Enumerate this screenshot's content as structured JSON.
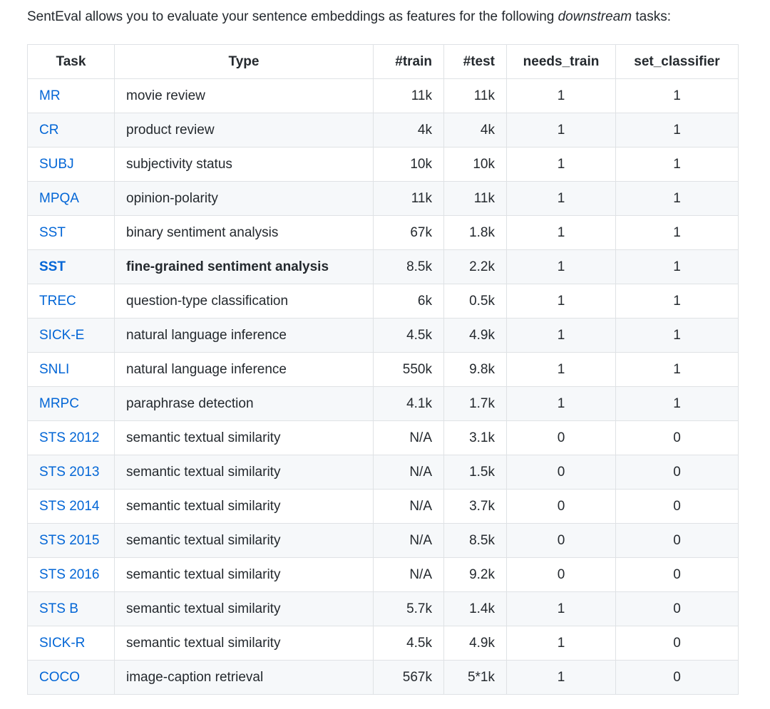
{
  "intro": {
    "prefix": "SentEval allows you to evaluate your sentence embeddings as features for the following ",
    "emphasis": "downstream",
    "suffix": " tasks:"
  },
  "colors": {
    "text": "#24292e",
    "link": "#0366d6",
    "border": "#dfe2e5",
    "stripe": "#f6f8fa",
    "background": "#ffffff"
  },
  "table": {
    "columns": [
      {
        "key": "task",
        "label": "Task",
        "align": "left",
        "header_align": "center"
      },
      {
        "key": "type",
        "label": "Type",
        "align": "left",
        "header_align": "center"
      },
      {
        "key": "train",
        "label": "#train",
        "align": "right",
        "header_align": "right"
      },
      {
        "key": "test",
        "label": "#test",
        "align": "right",
        "header_align": "right"
      },
      {
        "key": "needs_train",
        "label": "needs_train",
        "align": "center",
        "header_align": "center"
      },
      {
        "key": "set_classifier",
        "label": "set_classifier",
        "align": "center",
        "header_align": "center"
      }
    ],
    "rows": [
      {
        "task": "MR",
        "type": "movie review",
        "train": "11k",
        "test": "11k",
        "needs_train": "1",
        "set_classifier": "1",
        "bold": false
      },
      {
        "task": "CR",
        "type": "product review",
        "train": "4k",
        "test": "4k",
        "needs_train": "1",
        "set_classifier": "1",
        "bold": false
      },
      {
        "task": "SUBJ",
        "type": "subjectivity status",
        "train": "10k",
        "test": "10k",
        "needs_train": "1",
        "set_classifier": "1",
        "bold": false
      },
      {
        "task": "MPQA",
        "type": "opinion-polarity",
        "train": "11k",
        "test": "11k",
        "needs_train": "1",
        "set_classifier": "1",
        "bold": false
      },
      {
        "task": "SST",
        "type": "binary sentiment analysis",
        "train": "67k",
        "test": "1.8k",
        "needs_train": "1",
        "set_classifier": "1",
        "bold": false
      },
      {
        "task": "SST",
        "type": "fine-grained sentiment analysis",
        "train": "8.5k",
        "test": "2.2k",
        "needs_train": "1",
        "set_classifier": "1",
        "bold": true
      },
      {
        "task": "TREC",
        "type": "question-type classification",
        "train": "6k",
        "test": "0.5k",
        "needs_train": "1",
        "set_classifier": "1",
        "bold": false
      },
      {
        "task": "SICK-E",
        "type": "natural language inference",
        "train": "4.5k",
        "test": "4.9k",
        "needs_train": "1",
        "set_classifier": "1",
        "bold": false
      },
      {
        "task": "SNLI",
        "type": "natural language inference",
        "train": "550k",
        "test": "9.8k",
        "needs_train": "1",
        "set_classifier": "1",
        "bold": false
      },
      {
        "task": "MRPC",
        "type": "paraphrase detection",
        "train": "4.1k",
        "test": "1.7k",
        "needs_train": "1",
        "set_classifier": "1",
        "bold": false
      },
      {
        "task": "STS 2012",
        "type": "semantic textual similarity",
        "train": "N/A",
        "test": "3.1k",
        "needs_train": "0",
        "set_classifier": "0",
        "bold": false
      },
      {
        "task": "STS 2013",
        "type": "semantic textual similarity",
        "train": "N/A",
        "test": "1.5k",
        "needs_train": "0",
        "set_classifier": "0",
        "bold": false
      },
      {
        "task": "STS 2014",
        "type": "semantic textual similarity",
        "train": "N/A",
        "test": "3.7k",
        "needs_train": "0",
        "set_classifier": "0",
        "bold": false
      },
      {
        "task": "STS 2015",
        "type": "semantic textual similarity",
        "train": "N/A",
        "test": "8.5k",
        "needs_train": "0",
        "set_classifier": "0",
        "bold": false
      },
      {
        "task": "STS 2016",
        "type": "semantic textual similarity",
        "train": "N/A",
        "test": "9.2k",
        "needs_train": "0",
        "set_classifier": "0",
        "bold": false
      },
      {
        "task": "STS B",
        "type": "semantic textual similarity",
        "train": "5.7k",
        "test": "1.4k",
        "needs_train": "1",
        "set_classifier": "0",
        "bold": false
      },
      {
        "task": "SICK-R",
        "type": "semantic textual similarity",
        "train": "4.5k",
        "test": "4.9k",
        "needs_train": "1",
        "set_classifier": "0",
        "bold": false
      },
      {
        "task": "COCO",
        "type": "image-caption retrieval",
        "train": "567k",
        "test": "5*1k",
        "needs_train": "1",
        "set_classifier": "0",
        "bold": false
      }
    ]
  }
}
